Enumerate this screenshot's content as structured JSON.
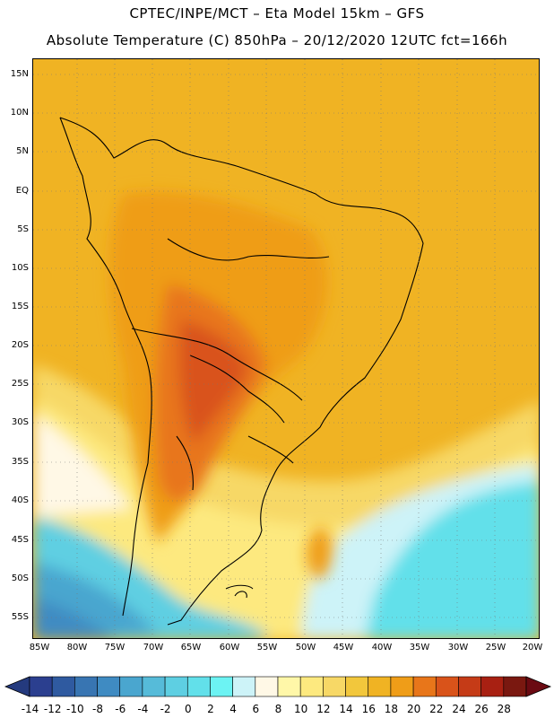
{
  "header": {
    "line1": "CPTEC/INPE/MCT –  Eta Model 15km – GFS",
    "line2": "Absolute Temperature (C) 850hPa – 20/12/2020 12UTC fct=166h"
  },
  "map": {
    "lat_labels": [
      "15N",
      "10N",
      "5N",
      "EQ",
      "5S",
      "10S",
      "15S",
      "20S",
      "25S",
      "30S",
      "35S",
      "40S",
      "45S",
      "50S",
      "55S"
    ],
    "lon_labels": [
      "85W",
      "80W",
      "75W",
      "70W",
      "65W",
      "60W",
      "55W",
      "50W",
      "45W",
      "40W",
      "35W",
      "30W",
      "25W",
      "20W"
    ]
  },
  "colorbar": {
    "labels": [
      "-14",
      "-12",
      "-10",
      "-8",
      "-6",
      "-4",
      "-2",
      "0",
      "2",
      "4",
      "6",
      "8",
      "10",
      "12",
      "14",
      "16",
      "18",
      "20",
      "22",
      "24",
      "26",
      "28"
    ],
    "colors": [
      "#2b3f8f",
      "#2f5aa0",
      "#3875b2",
      "#3f8bc2",
      "#4aa6cf",
      "#56bbd9",
      "#5ecfe2",
      "#62e0ea",
      "#6cf3f3",
      "#cdf3f8",
      "#fff8e6",
      "#fff7a8",
      "#fde97f",
      "#f7d866",
      "#f2c73c",
      "#f0b323",
      "#ef9d18",
      "#e8761a",
      "#d9531a",
      "#c53b17",
      "#a82012",
      "#7a1810"
    ]
  }
}
